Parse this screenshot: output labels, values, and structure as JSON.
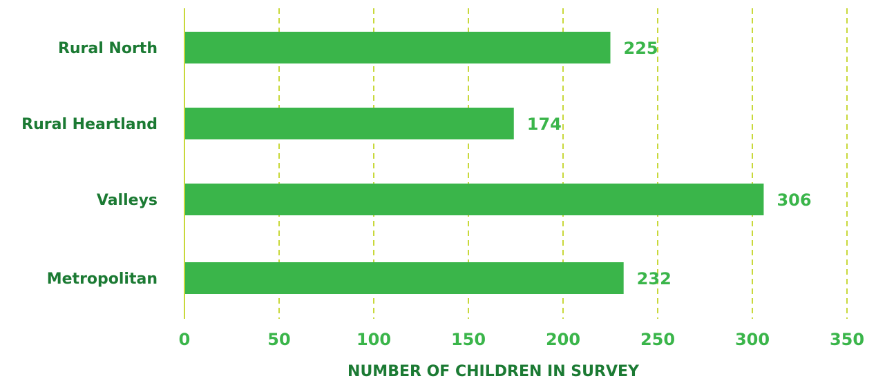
{
  "chart_data": {
    "type": "bar",
    "orientation": "horizontal",
    "categories": [
      "Rural North",
      "Rural Heartland",
      "Valleys",
      "Metropolitan"
    ],
    "values": [
      225,
      174,
      306,
      232
    ],
    "value_labels": [
      "225",
      "174",
      "306",
      "232"
    ],
    "xlabel": "NUMBER OF CHILDREN IN SURVEY",
    "ylabel": "",
    "title": "",
    "xlim": [
      0,
      350
    ],
    "xticks": [
      0,
      50,
      100,
      150,
      200,
      250,
      300,
      350
    ],
    "xtick_labels": [
      "0",
      "50",
      "100",
      "150",
      "200",
      "250",
      "300",
      "350"
    ],
    "grid": "vertical dashed",
    "legend": "none",
    "colors": {
      "bar": "#3ab54a",
      "category_text": "#1b7a33",
      "value_text": "#3ab54a",
      "tick_text": "#3ab54a",
      "axis_title_text": "#1b7a33",
      "grid": "#c8d83a",
      "axis_line": "#c8d83a"
    }
  }
}
